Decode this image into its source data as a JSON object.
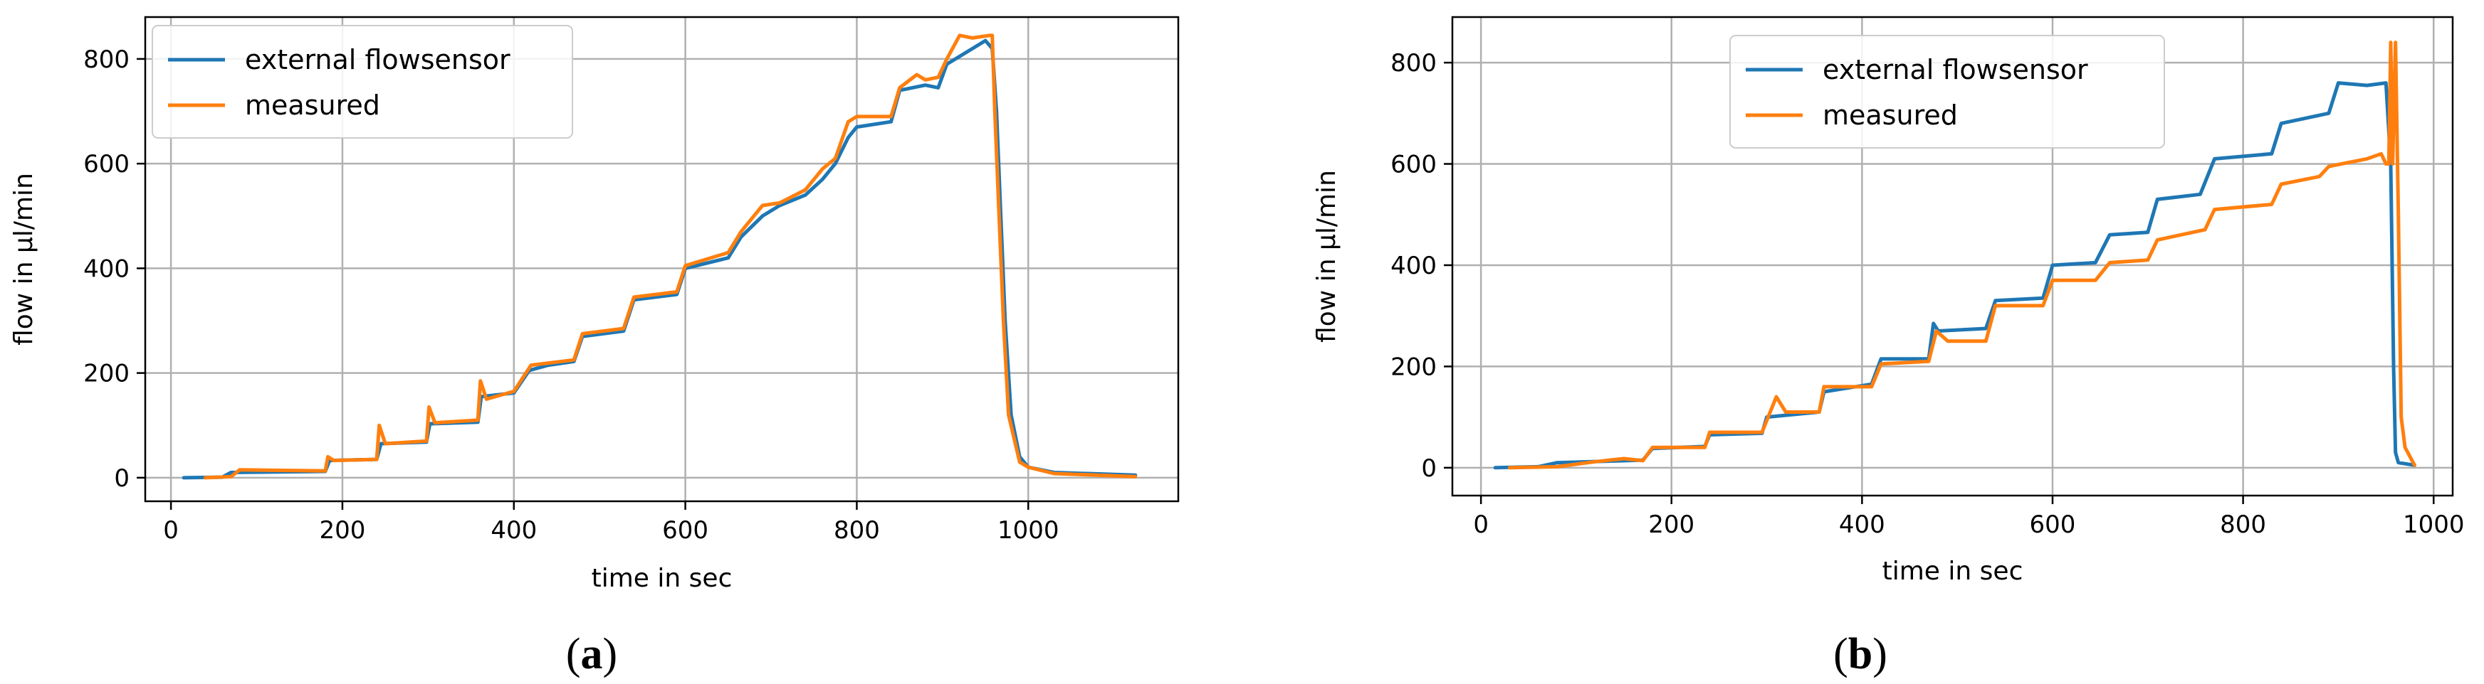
{
  "colors": {
    "external": "#1f77b4",
    "measured": "#ff7f0e",
    "grid": "#b0b0b0",
    "axis": "#000000",
    "background": "#ffffff"
  },
  "captions": [
    {
      "open": "(",
      "letter": "a",
      "close": ")"
    },
    {
      "open": "(",
      "letter": "b",
      "close": ")"
    }
  ],
  "chart_data": [
    {
      "id": "a",
      "type": "line",
      "xlabel": "time in sec",
      "ylabel": "flow in µl/min",
      "xlim": [
        -30,
        1175
      ],
      "ylim": [
        -45,
        880
      ],
      "xticks": [
        0,
        200,
        400,
        600,
        800,
        1000
      ],
      "yticks": [
        0,
        200,
        400,
        600,
        800
      ],
      "grid": true,
      "legend_position": "top-left",
      "series": [
        {
          "name": "external flowsensor",
          "color": "#1f77b4",
          "points": [
            [
              15,
              0
            ],
            [
              60,
              1
            ],
            [
              70,
              10
            ],
            [
              180,
              12
            ],
            [
              185,
              33
            ],
            [
              240,
              35
            ],
            [
              245,
              65
            ],
            [
              298,
              68
            ],
            [
              302,
              103
            ],
            [
              358,
              106
            ],
            [
              362,
              155
            ],
            [
              400,
              162
            ],
            [
              418,
              205
            ],
            [
              440,
              215
            ],
            [
              470,
              222
            ],
            [
              480,
              270
            ],
            [
              528,
              280
            ],
            [
              540,
              340
            ],
            [
              590,
              350
            ],
            [
              600,
              400
            ],
            [
              650,
              420
            ],
            [
              665,
              460
            ],
            [
              690,
              500
            ],
            [
              710,
              520
            ],
            [
              740,
              540
            ],
            [
              760,
              570
            ],
            [
              775,
              600
            ],
            [
              790,
              650
            ],
            [
              800,
              670
            ],
            [
              840,
              680
            ],
            [
              850,
              740
            ],
            [
              880,
              750
            ],
            [
              895,
              745
            ],
            [
              905,
              790
            ],
            [
              935,
              820
            ],
            [
              950,
              835
            ],
            [
              958,
              820
            ],
            [
              963,
              700
            ],
            [
              968,
              500
            ],
            [
              973,
              300
            ],
            [
              980,
              120
            ],
            [
              990,
              40
            ],
            [
              1000,
              20
            ],
            [
              1030,
              10
            ],
            [
              1125,
              5
            ]
          ]
        },
        {
          "name": "measured",
          "color": "#ff7f0e",
          "points": [
            [
              40,
              0
            ],
            [
              70,
              2
            ],
            [
              80,
              15
            ],
            [
              180,
              13
            ],
            [
              183,
              40
            ],
            [
              190,
              33
            ],
            [
              240,
              35
            ],
            [
              243,
              100
            ],
            [
              250,
              65
            ],
            [
              298,
              70
            ],
            [
              301,
              135
            ],
            [
              308,
              105
            ],
            [
              358,
              110
            ],
            [
              361,
              185
            ],
            [
              368,
              150
            ],
            [
              400,
              165
            ],
            [
              420,
              215
            ],
            [
              470,
              225
            ],
            [
              480,
              275
            ],
            [
              528,
              285
            ],
            [
              540,
              345
            ],
            [
              590,
              355
            ],
            [
              600,
              405
            ],
            [
              650,
              430
            ],
            [
              665,
              470
            ],
            [
              690,
              520
            ],
            [
              710,
              525
            ],
            [
              740,
              550
            ],
            [
              760,
              590
            ],
            [
              775,
              610
            ],
            [
              790,
              680
            ],
            [
              800,
              690
            ],
            [
              840,
              690
            ],
            [
              850,
              745
            ],
            [
              870,
              770
            ],
            [
              880,
              760
            ],
            [
              895,
              765
            ],
            [
              905,
              800
            ],
            [
              920,
              845
            ],
            [
              935,
              840
            ],
            [
              955,
              845
            ],
            [
              958,
              845
            ],
            [
              961,
              700
            ],
            [
              966,
              500
            ],
            [
              971,
              300
            ],
            [
              977,
              120
            ],
            [
              990,
              30
            ],
            [
              1000,
              20
            ],
            [
              1030,
              8
            ],
            [
              1125,
              2
            ]
          ]
        }
      ]
    },
    {
      "id": "b",
      "type": "line",
      "xlabel": "time in sec",
      "ylabel": "flow in µl/min",
      "xlim": [
        -30,
        1020
      ],
      "ylim": [
        -55,
        890
      ],
      "xticks": [
        0,
        200,
        400,
        600,
        800,
        1000
      ],
      "yticks": [
        0,
        200,
        400,
        600,
        800
      ],
      "grid": true,
      "legend_position": "top-center",
      "series": [
        {
          "name": "external flowsensor",
          "color": "#1f77b4",
          "points": [
            [
              15,
              0
            ],
            [
              60,
              2
            ],
            [
              80,
              10
            ],
            [
              170,
              15
            ],
            [
              180,
              38
            ],
            [
              235,
              42
            ],
            [
              240,
              65
            ],
            [
              295,
              68
            ],
            [
              300,
              100
            ],
            [
              355,
              110
            ],
            [
              360,
              150
            ],
            [
              410,
              165
            ],
            [
              420,
              215
            ],
            [
              470,
              215
            ],
            [
              475,
              285
            ],
            [
              480,
              270
            ],
            [
              530,
              275
            ],
            [
              540,
              330
            ],
            [
              590,
              335
            ],
            [
              600,
              400
            ],
            [
              645,
              405
            ],
            [
              660,
              460
            ],
            [
              700,
              465
            ],
            [
              710,
              530
            ],
            [
              755,
              540
            ],
            [
              770,
              610
            ],
            [
              830,
              620
            ],
            [
              840,
              680
            ],
            [
              890,
              700
            ],
            [
              900,
              760
            ],
            [
              930,
              755
            ],
            [
              950,
              760
            ],
            [
              955,
              600
            ],
            [
              958,
              200
            ],
            [
              960,
              30
            ],
            [
              963,
              10
            ],
            [
              980,
              5
            ]
          ]
        },
        {
          "name": "measured",
          "color": "#ff7f0e",
          "points": [
            [
              30,
              0
            ],
            [
              80,
              2
            ],
            [
              120,
              12
            ],
            [
              150,
              18
            ],
            [
              170,
              14
            ],
            [
              180,
              40
            ],
            [
              235,
              40
            ],
            [
              240,
              70
            ],
            [
              295,
              70
            ],
            [
              310,
              140
            ],
            [
              320,
              110
            ],
            [
              355,
              110
            ],
            [
              360,
              160
            ],
            [
              410,
              160
            ],
            [
              420,
              205
            ],
            [
              470,
              210
            ],
            [
              478,
              270
            ],
            [
              490,
              250
            ],
            [
              530,
              250
            ],
            [
              540,
              320
            ],
            [
              590,
              320
            ],
            [
              600,
              370
            ],
            [
              645,
              370
            ],
            [
              660,
              405
            ],
            [
              700,
              410
            ],
            [
              710,
              450
            ],
            [
              760,
              470
            ],
            [
              770,
              510
            ],
            [
              830,
              520
            ],
            [
              840,
              560
            ],
            [
              880,
              575
            ],
            [
              890,
              595
            ],
            [
              930,
              610
            ],
            [
              945,
              620
            ],
            [
              950,
              600
            ],
            [
              953,
              600
            ],
            [
              955,
              840
            ],
            [
              957,
              600
            ],
            [
              960,
              840
            ],
            [
              963,
              500
            ],
            [
              966,
              100
            ],
            [
              970,
              40
            ],
            [
              980,
              5
            ]
          ]
        }
      ]
    }
  ]
}
